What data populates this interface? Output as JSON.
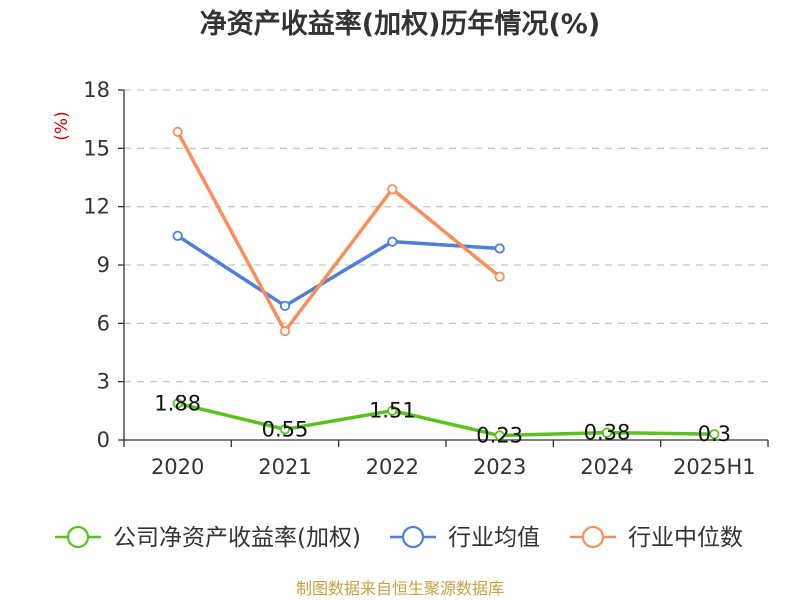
{
  "chart_data": {
    "type": "line",
    "title": "净资产收益率(加权)历年情况(%)",
    "ylabel": "(%)",
    "categories": [
      "2020",
      "2021",
      "2022",
      "2023",
      "2024",
      "2025H1"
    ],
    "ylim": [
      0,
      18
    ],
    "yticks": [
      0,
      3,
      6,
      9,
      12,
      15,
      18
    ],
    "grid": true,
    "legend_position": "bottom",
    "series": [
      {
        "name": "公司净资产收益率(加权)",
        "color": "#5ac21f",
        "values": [
          1.88,
          0.55,
          1.51,
          0.23,
          0.38,
          0.3
        ],
        "labels": [
          "1.88",
          "0.55",
          "1.51",
          "0.23",
          "0.38",
          "0.3"
        ]
      },
      {
        "name": "行业均值",
        "color": "#4e7fdb",
        "values": [
          10.5,
          6.9,
          10.2,
          9.85,
          null,
          null
        ]
      },
      {
        "name": "行业中位数",
        "color": "#f98e5a",
        "values": [
          15.85,
          5.6,
          12.9,
          8.4,
          null,
          null
        ]
      }
    ],
    "source": "制图数据来自恒生聚源数据库"
  }
}
